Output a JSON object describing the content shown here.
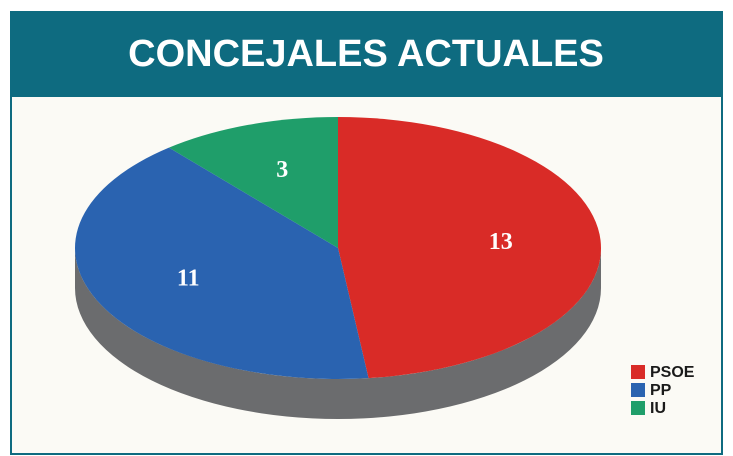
{
  "chart_data": {
    "type": "pie",
    "title": "CONCEJALES ACTUALES",
    "categories": [
      "PSOE",
      "PP",
      "IU"
    ],
    "values": [
      13,
      11,
      3
    ],
    "colors": [
      "#d92b27",
      "#2a63b0",
      "#1f9e6a"
    ],
    "legend": "bottom-right"
  }
}
